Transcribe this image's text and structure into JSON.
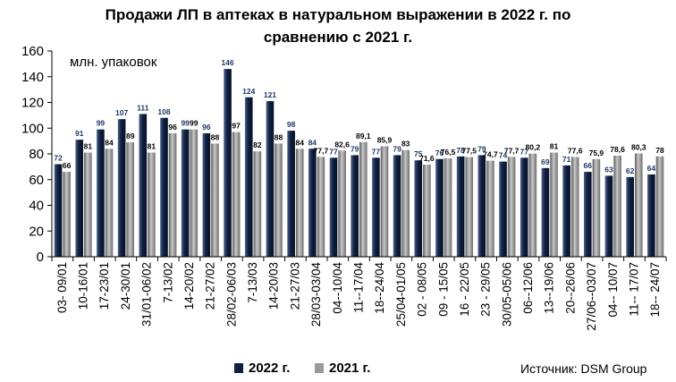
{
  "chart_data": {
    "type": "bar",
    "title_line1": "Продажи ЛП в аптеках в натуральном выражении в 2022 г. по",
    "title_line2": "сравнению с 2021 г.",
    "unit_label": "млн.  упаковок",
    "ylim": [
      0,
      160
    ],
    "yticks": [
      0,
      20,
      40,
      60,
      80,
      100,
      120,
      140,
      160
    ],
    "grid": false,
    "legend_position": "bottom",
    "categories": [
      "03- 09/01",
      "10-16/01",
      "17-23/01",
      "24-30/01",
      "31/01-06/02",
      "7-13/02",
      "14-20/02",
      "21-27/02",
      "28/02-06/03",
      "7-13/03",
      "14-20/03",
      "21-27/03",
      "28/03-03/04",
      "04--10/04",
      "11--17/04",
      "18--24/04",
      "25/04-01/05",
      "02 - 08/05",
      "09 - 15/05",
      "16 - 22/05",
      "23 - 29/05",
      "30/05-05/06",
      "06--12/06",
      "13--19/06",
      "20--26/06",
      "27/06--03/07",
      "04-- 10/07",
      "11-- 17/07",
      "18-- 24/07"
    ],
    "series": [
      {
        "name": "2022 г.",
        "color": "#0f1f3d",
        "values": [
          72,
          91,
          99,
          107,
          111,
          108,
          99,
          96,
          146,
          124,
          121,
          98,
          84,
          77,
          79,
          77,
          79,
          75,
          76,
          78,
          79,
          74,
          77,
          69,
          71,
          66,
          63,
          62,
          64
        ],
        "labels": [
          "72",
          "91",
          "99",
          "107",
          "111",
          "108",
          "99",
          "96",
          "146",
          "124",
          "121",
          "98",
          "84",
          "77",
          "79",
          "77",
          "79",
          "75",
          "76",
          "78",
          "79",
          "74",
          "77",
          "69",
          "71",
          "66",
          "63",
          "62",
          "64"
        ]
      },
      {
        "name": "2021 г.",
        "color": "#8c8c8c",
        "values": [
          66,
          81,
          84,
          89,
          81,
          96,
          99,
          88,
          97,
          82,
          88,
          84,
          77.7,
          82.6,
          89.1,
          85.9,
          83,
          71.6,
          76.5,
          77.5,
          74.7,
          77.7,
          80.2,
          81,
          77.6,
          75.9,
          78.6,
          80.3,
          78
        ],
        "labels": [
          "66",
          "81",
          "84",
          "89",
          "81",
          "96",
          "99",
          "88",
          "97",
          "82",
          "88",
          "84",
          "77,7",
          "82,6",
          "89,1",
          "85,9",
          "83",
          "71,6",
          "76,5",
          "77,5",
          "74,7",
          "77,7",
          "80,2",
          "81",
          "77,6",
          "75,9",
          "78,6",
          "80,3",
          "78"
        ]
      }
    ]
  },
  "legend": {
    "series1": "2022 г.",
    "series2": "2021 г."
  },
  "source": "Источник: DSM Group"
}
